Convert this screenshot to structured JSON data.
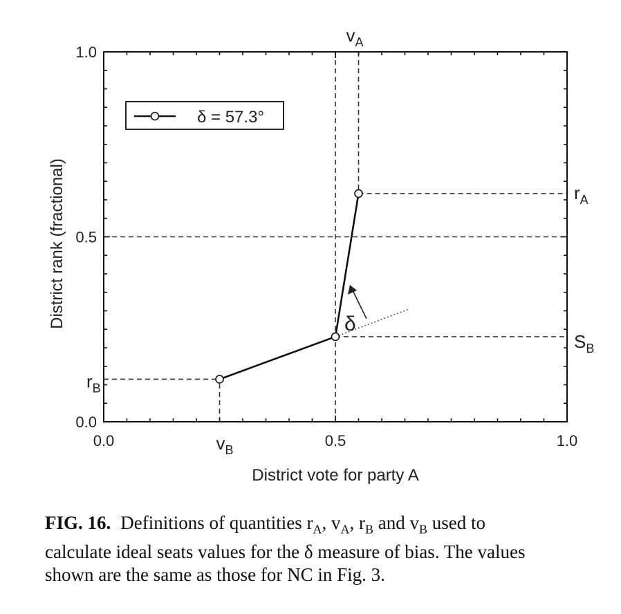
{
  "chart_data": {
    "type": "line",
    "xlabel": "District vote for party A",
    "ylabel": "District rank (fractional)",
    "xlim": [
      0.0,
      1.0
    ],
    "ylim": [
      0.0,
      1.0
    ],
    "x_ticks": [
      "0.0",
      "0.5",
      "1.0"
    ],
    "y_ticks": [
      "0.0",
      "0.5",
      "1.0"
    ],
    "legend": {
      "position": "upper-left",
      "label": "δ = 57.3°"
    },
    "series": [
      {
        "name": "δ = 57.3°",
        "x": [
          0.25,
          0.5,
          0.55
        ],
        "y": [
          0.115,
          0.23,
          0.617
        ]
      }
    ],
    "reference_line": {
      "style": "dotted",
      "x": [
        0.5,
        0.66
      ],
      "y": [
        0.23,
        0.305
      ]
    },
    "guides": {
      "v_B": 0.25,
      "v_mid": 0.5,
      "v_A": 0.55,
      "r_B": 0.115,
      "S_B": 0.23,
      "r_mid": 0.5,
      "r_A": 0.617
    },
    "annotations": {
      "vA_base": "v",
      "vA_sub": "A",
      "vB_base": "v",
      "vB_sub": "B",
      "rA_base": "r",
      "rA_sub": "A",
      "rB_base": "r",
      "rB_sub": "B",
      "SB_base": "S",
      "SB_sub": "B",
      "delta": "δ"
    }
  },
  "caption": {
    "label": "FIG. 16.",
    "line1_pre": "Definitions of quantities r",
    "sub_A1": "A",
    "line1_sep1": ", v",
    "sub_A2": "A",
    "line1_sep2": ", r",
    "sub_B1": "B",
    "line1_sep3": " and v",
    "sub_B2": "B",
    "line1_post": " used to",
    "line2": "calculate ideal seats values for the δ measure of bias. The values",
    "line3": "shown are the same as those for NC in Fig. 3."
  }
}
